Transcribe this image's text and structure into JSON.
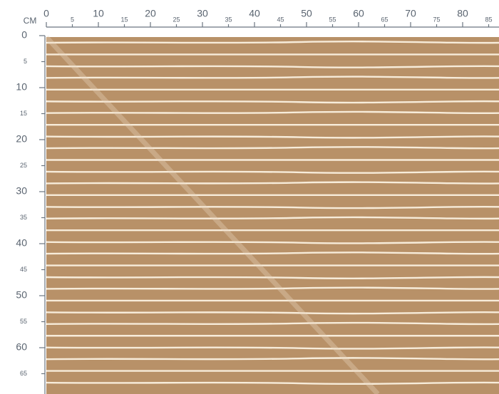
{
  "ruler": {
    "unit": "CM",
    "top": {
      "ticks": [
        0,
        5,
        10,
        15,
        20,
        25,
        30,
        35,
        40,
        45,
        50,
        55,
        60,
        65,
        70,
        75,
        80,
        85
      ]
    },
    "left": {
      "ticks": [
        0,
        5,
        10,
        15,
        20,
        25,
        30,
        35,
        40,
        45,
        50,
        55,
        60,
        65
      ]
    }
  }
}
